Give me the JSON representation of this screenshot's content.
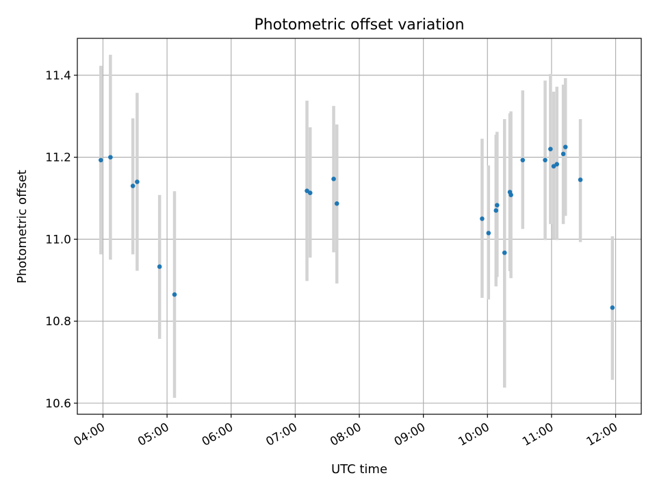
{
  "chart_data": {
    "type": "scatter",
    "title": "Photometric offset variation",
    "xlabel": "UTC time",
    "ylabel": "Photometric offset",
    "xlim": [
      "03:36",
      "12:24"
    ],
    "ylim": [
      10.573,
      11.49
    ],
    "x_ticks": [
      "04:00",
      "05:00",
      "06:00",
      "07:00",
      "08:00",
      "09:00",
      "10:00",
      "11:00",
      "12:00"
    ],
    "y_ticks": [
      10.6,
      10.8,
      11.0,
      11.2,
      11.4
    ],
    "y_tick_labels": [
      "10.6",
      "10.8",
      "11.0",
      "11.2",
      "11.4"
    ],
    "grid": true,
    "legend": "none",
    "point_color": "#1f77b4",
    "errorbar_color": "#d3d3d3",
    "points": [
      {
        "x": "03:58",
        "y": 11.193,
        "ylow": 10.963,
        "yhigh": 11.423
      },
      {
        "x": "04:07",
        "y": 11.2,
        "ylow": 10.95,
        "yhigh": 11.45
      },
      {
        "x": "04:28",
        "y": 11.13,
        "ylow": 10.963,
        "yhigh": 11.295
      },
      {
        "x": "04:32",
        "y": 11.14,
        "ylow": 10.923,
        "yhigh": 11.357
      },
      {
        "x": "04:53",
        "y": 10.933,
        "ylow": 10.757,
        "yhigh": 11.108
      },
      {
        "x": "05:07",
        "y": 10.865,
        "ylow": 10.613,
        "yhigh": 11.117
      },
      {
        "x": "07:11",
        "y": 11.118,
        "ylow": 10.898,
        "yhigh": 11.338
      },
      {
        "x": "07:14",
        "y": 11.113,
        "ylow": 10.955,
        "yhigh": 11.273
      },
      {
        "x": "07:36",
        "y": 11.147,
        "ylow": 10.968,
        "yhigh": 11.325
      },
      {
        "x": "07:39",
        "y": 11.087,
        "ylow": 10.892,
        "yhigh": 11.28
      },
      {
        "x": "09:55",
        "y": 11.05,
        "ylow": 10.857,
        "yhigh": 11.245
      },
      {
        "x": "10:01",
        "y": 11.015,
        "ylow": 10.853,
        "yhigh": 11.18
      },
      {
        "x": "10:08",
        "y": 11.07,
        "ylow": 10.885,
        "yhigh": 11.255
      },
      {
        "x": "10:09",
        "y": 11.083,
        "ylow": 10.908,
        "yhigh": 11.262
      },
      {
        "x": "10:16",
        "y": 10.967,
        "ylow": 10.638,
        "yhigh": 11.293
      },
      {
        "x": "10:21",
        "y": 11.115,
        "ylow": 10.922,
        "yhigh": 11.307
      },
      {
        "x": "10:22",
        "y": 11.108,
        "ylow": 10.905,
        "yhigh": 11.312
      },
      {
        "x": "10:33",
        "y": 11.193,
        "ylow": 11.025,
        "yhigh": 11.363
      },
      {
        "x": "10:54",
        "y": 11.193,
        "ylow": 10.998,
        "yhigh": 11.387
      },
      {
        "x": "10:59",
        "y": 11.22,
        "ylow": 11.037,
        "yhigh": 11.403
      },
      {
        "x": "11:02",
        "y": 11.178,
        "ylow": 11.0,
        "yhigh": 11.36
      },
      {
        "x": "11:05",
        "y": 11.183,
        "ylow": 10.998,
        "yhigh": 11.372
      },
      {
        "x": "11:11",
        "y": 11.208,
        "ylow": 11.037,
        "yhigh": 11.377
      },
      {
        "x": "11:13",
        "y": 11.225,
        "ylow": 11.057,
        "yhigh": 11.393
      },
      {
        "x": "11:27",
        "y": 11.145,
        "ylow": 10.993,
        "yhigh": 11.293
      },
      {
        "x": "11:57",
        "y": 10.833,
        "ylow": 10.657,
        "yhigh": 11.007
      }
    ]
  }
}
